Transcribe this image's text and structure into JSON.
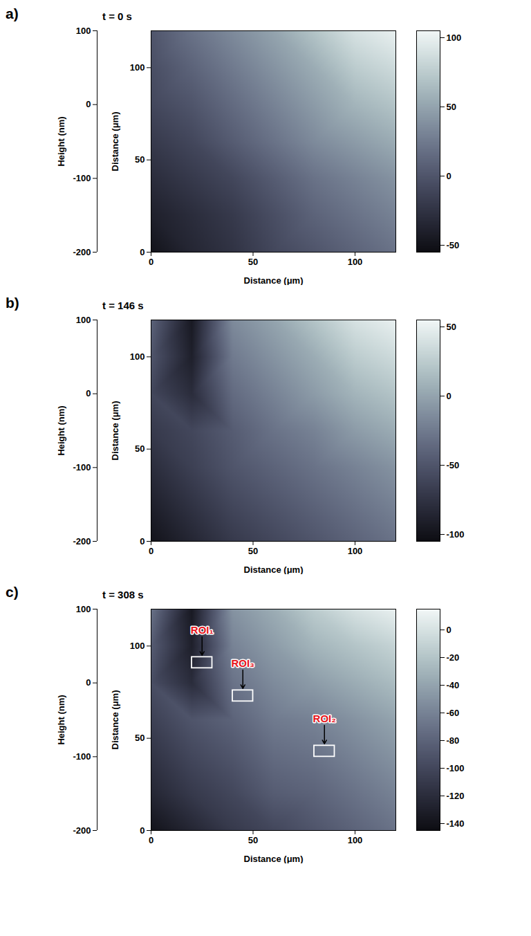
{
  "chart_data": [
    {
      "type": "heatmap",
      "panel": "a)",
      "title": "t = 0 s",
      "xlabel": "Distance (μm)",
      "ylabel": "Distance (μm)",
      "zlabel": "Height (nm)",
      "xlim": [
        0,
        120
      ],
      "xticks": [
        0,
        50,
        100
      ],
      "ylim": [
        0,
        120
      ],
      "yticks": [
        0,
        50,
        100
      ],
      "zlim": [
        -200,
        100
      ],
      "zticks": [
        100,
        0,
        -100,
        -200
      ],
      "x": [
        0,
        20,
        40,
        60,
        80,
        100,
        120
      ],
      "y": [
        0,
        20,
        40,
        60,
        80,
        100,
        120
      ],
      "z": [
        [
          -50,
          -35,
          -25,
          -10,
          0,
          10,
          20
        ],
        [
          -40,
          -30,
          -20,
          -5,
          10,
          20,
          30
        ],
        [
          -30,
          -20,
          -10,
          5,
          20,
          30,
          40
        ],
        [
          -20,
          -10,
          5,
          20,
          35,
          45,
          55
        ],
        [
          -10,
          0,
          15,
          30,
          45,
          60,
          70
        ],
        [
          -5,
          10,
          25,
          40,
          55,
          75,
          85
        ],
        [
          0,
          20,
          35,
          50,
          70,
          90,
          100
        ]
      ],
      "colorbar_lim": [
        -55,
        105
      ],
      "colorbar_ticks": [
        100,
        50,
        0,
        -50
      ]
    },
    {
      "type": "heatmap",
      "panel": "b)",
      "title": "t = 146 s",
      "xlabel": "Distance (μm)",
      "ylabel": "Distance (μm)",
      "zlabel": "Height (nm)",
      "xlim": [
        0,
        120
      ],
      "xticks": [
        0,
        50,
        100
      ],
      "ylim": [
        0,
        120
      ],
      "yticks": [
        0,
        50,
        100
      ],
      "zlim": [
        -200,
        100
      ],
      "zticks": [
        100,
        0,
        -100,
        -200
      ],
      "x": [
        0,
        20,
        40,
        60,
        80,
        100,
        120
      ],
      "y": [
        0,
        20,
        40,
        60,
        80,
        100,
        120
      ],
      "z": [
        [
          -100,
          -85,
          -70,
          -60,
          -50,
          -40,
          -30
        ],
        [
          -90,
          -75,
          -60,
          -50,
          -40,
          -30,
          -20
        ],
        [
          -80,
          -65,
          -50,
          -40,
          -30,
          -20,
          -10
        ],
        [
          -70,
          -60,
          -45,
          -30,
          -20,
          -5,
          5
        ],
        [
          -60,
          -80,
          -35,
          -20,
          -5,
          10,
          20
        ],
        [
          -50,
          -90,
          -25,
          -10,
          5,
          25,
          35
        ],
        [
          -40,
          -95,
          -15,
          0,
          20,
          40,
          50
        ]
      ],
      "colorbar_lim": [
        -105,
        55
      ],
      "colorbar_ticks": [
        50,
        0,
        -50,
        -100
      ]
    },
    {
      "type": "heatmap",
      "panel": "c)",
      "title": "t = 308 s",
      "xlabel": "Distance (μm)",
      "ylabel": "Distance (μm)",
      "zlabel": "Height (nm)",
      "xlim": [
        0,
        120
      ],
      "xticks": [
        0,
        50,
        100
      ],
      "ylim": [
        0,
        120
      ],
      "yticks": [
        0,
        50,
        100
      ],
      "zlim": [
        -200,
        100
      ],
      "zticks": [
        100,
        0,
        -100,
        -200
      ],
      "x": [
        0,
        20,
        40,
        60,
        80,
        100,
        120
      ],
      "y": [
        0,
        20,
        40,
        60,
        80,
        100,
        120
      ],
      "z": [
        [
          -140,
          -125,
          -110,
          -100,
          -90,
          -80,
          -70
        ],
        [
          -125,
          -110,
          -100,
          -85,
          -80,
          -70,
          -60
        ],
        [
          -115,
          -100,
          -90,
          -75,
          -70,
          -60,
          -50
        ],
        [
          -105,
          -90,
          -80,
          -65,
          -60,
          -50,
          -40
        ],
        [
          -95,
          -120,
          -70,
          -55,
          -45,
          -35,
          -25
        ],
        [
          -85,
          -130,
          -60,
          -45,
          -30,
          -20,
          -10
        ],
        [
          -70,
          -135,
          -50,
          -35,
          -15,
          0,
          10
        ]
      ],
      "colorbar_lim": [
        -145,
        15
      ],
      "colorbar_ticks": [
        0,
        -20,
        -40,
        -60,
        -80,
        -100,
        -120,
        -140
      ],
      "regions": [
        {
          "label": "ROI₁",
          "x": [
            20,
            30
          ],
          "y": [
            88,
            94
          ]
        },
        {
          "label": "ROI₃",
          "x": [
            40,
            50
          ],
          "y": [
            70,
            76
          ]
        },
        {
          "label": "ROI₂",
          "x": [
            80,
            90
          ],
          "y": [
            40,
            46
          ]
        }
      ]
    }
  ]
}
